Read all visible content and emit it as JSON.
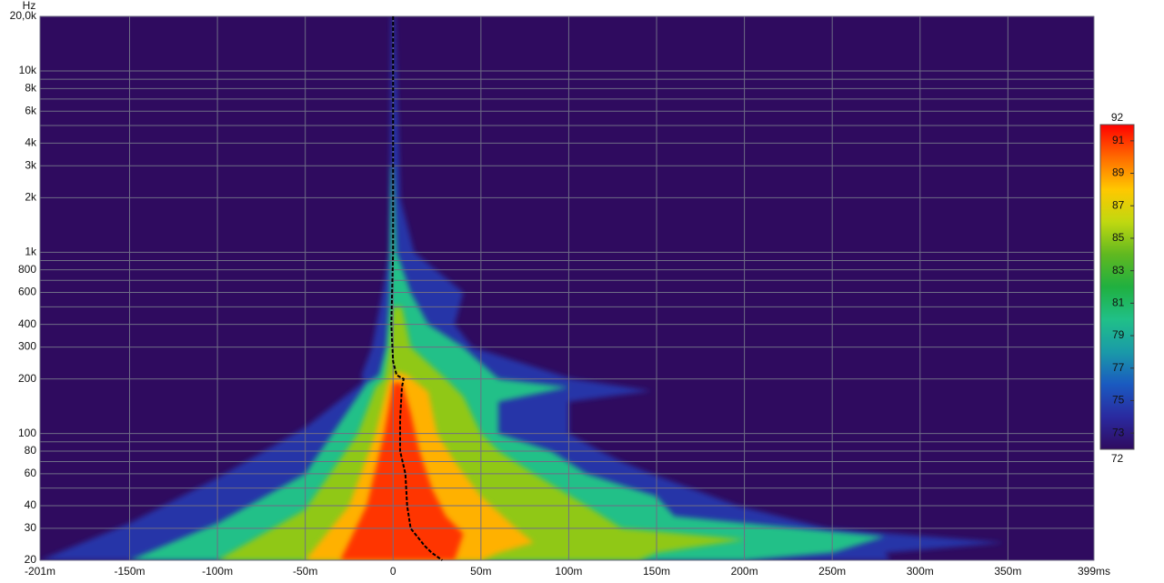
{
  "chart_data": {
    "type": "spectrogram",
    "y_unit": "Hz",
    "xlim": [
      -201,
      399
    ],
    "xticks": [
      {
        "value": -201,
        "label": "-201m"
      },
      {
        "value": -150,
        "label": "-150m"
      },
      {
        "value": -100,
        "label": "-100m"
      },
      {
        "value": -50,
        "label": "-50m"
      },
      0,
      {
        "value": 50,
        "label": "50m"
      },
      {
        "value": 100,
        "label": "100m"
      },
      {
        "value": 150,
        "label": "150m"
      },
      {
        "value": 200,
        "label": "200m"
      },
      {
        "value": 250,
        "label": "250m"
      },
      {
        "value": 300,
        "label": "300m"
      },
      {
        "value": 350,
        "label": "350m"
      },
      {
        "value": 399,
        "label": "399ms"
      }
    ],
    "ylim": [
      20,
      20000
    ],
    "log_y": true,
    "yticks": [
      20,
      30,
      40,
      60,
      80,
      100,
      200,
      300,
      400,
      600,
      800,
      {
        "value": 1000,
        "label": "1k"
      },
      {
        "value": 2000,
        "label": "2k"
      },
      {
        "value": 3000,
        "label": "3k"
      },
      {
        "value": 4000,
        "label": "4k"
      },
      {
        "value": 6000,
        "label": "6k"
      },
      {
        "value": 8000,
        "label": "8k"
      },
      {
        "value": 10000,
        "label": "10k"
      },
      {
        "value": 20000,
        "label": "20,0k"
      }
    ],
    "y_minor_grid": [
      50,
      70,
      90,
      500,
      700,
      900,
      5000,
      7000,
      9000
    ],
    "grid": true,
    "background": "#2f0b5f",
    "clim": [
      72,
      92
    ],
    "cticks": [
      73,
      75,
      77,
      79,
      81,
      83,
      85,
      87,
      89,
      91
    ],
    "colormap": [
      "#2f0b5f",
      "#2a2aa0",
      "#1a5ac0",
      "#1a9aa8",
      "#20c088",
      "#20b040",
      "#60b820",
      "#c0d810",
      "#ffc800",
      "#ff6a00",
      "#ff0000"
    ],
    "contours": [
      {
        "level": 74.5,
        "t": [
          -201,
          -150,
          -100,
          -50,
          -17,
          -18,
          -12,
          -6,
          -2,
          -1,
          1,
          4,
          12,
          40,
          35,
          45,
          102,
          147,
          100,
          100,
          118,
          130,
          147,
          196,
          247,
          348,
          280,
          283
        ],
        "f": [
          20,
          32,
          57,
          108,
          192,
          210,
          300,
          600,
          1000,
          20000,
          20000,
          2000,
          1000,
          600,
          400,
          300,
          200,
          172,
          150,
          100,
          80,
          70,
          60,
          40,
          30,
          25,
          22,
          20
        ]
      },
      {
        "level": 80,
        "t": [
          -150,
          -100,
          -50,
          -15,
          -8,
          -4,
          -2,
          -1,
          0,
          2,
          10,
          20,
          40,
          60,
          100,
          60,
          60,
          90,
          110,
          150,
          160,
          280,
          250,
          200
        ],
        "f": [
          20,
          32,
          60,
          190,
          210,
          300,
          600,
          3000,
          3000,
          1000,
          600,
          400,
          300,
          200,
          180,
          150,
          100,
          80,
          60,
          45,
          35,
          27,
          22,
          20
        ]
      },
      {
        "level": 85,
        "t": [
          -100,
          -50,
          -20,
          -10,
          -5,
          -2,
          0,
          5,
          10,
          30,
          40,
          50,
          60,
          80,
          110,
          130,
          200,
          150,
          140
        ],
        "f": [
          20,
          38,
          100,
          180,
          200,
          300,
          500,
          500,
          300,
          200,
          160,
          100,
          80,
          60,
          40,
          30,
          26,
          22,
          20
        ]
      },
      {
        "level": 88.5,
        "t": [
          -50,
          -25,
          -10,
          -3,
          2,
          8,
          20,
          25,
          35,
          50,
          70,
          80,
          60,
          50
        ],
        "f": [
          20,
          40,
          100,
          190,
          220,
          210,
          170,
          100,
          70,
          45,
          30,
          25,
          22,
          20
        ]
      },
      {
        "level": 91,
        "t": [
          -30,
          -15,
          -5,
          0,
          5,
          10,
          15,
          22,
          30,
          40,
          35
        ],
        "f": [
          20,
          40,
          100,
          190,
          190,
          130,
          80,
          50,
          35,
          28,
          20
        ]
      }
    ],
    "peak": {
      "t": [
        0,
        0,
        -1,
        0,
        2,
        6,
        5,
        4,
        4,
        7,
        8,
        10,
        18,
        22,
        28
      ],
      "f": [
        20000,
        1000,
        400,
        250,
        210,
        200,
        180,
        120,
        80,
        60,
        40,
        30,
        24,
        22,
        20
      ]
    }
  }
}
